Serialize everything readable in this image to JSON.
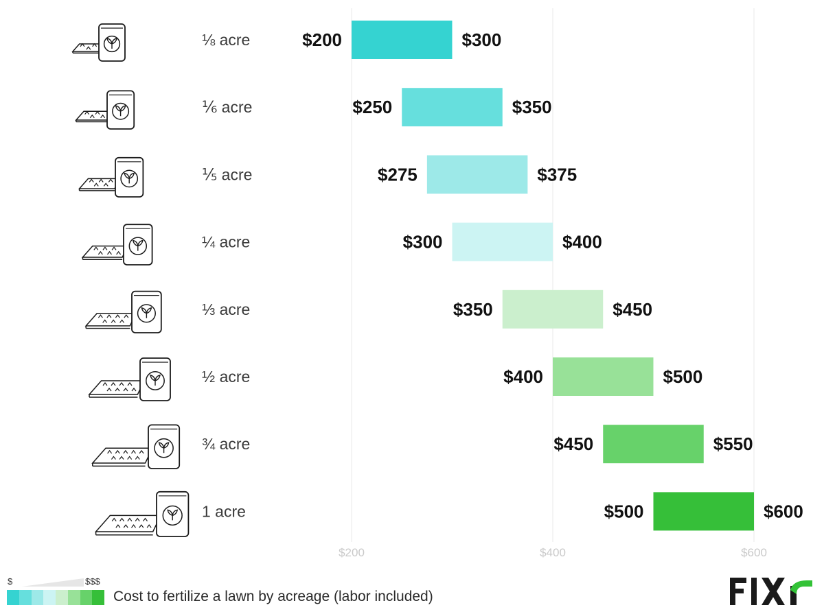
{
  "chart_data": {
    "type": "bar",
    "subtype": "floating-range-horizontal",
    "title": "Cost to fertilize a lawn by acreage (labor included)",
    "xlabel": "",
    "ylabel": "",
    "xlim": [
      100,
      640
    ],
    "xticks": [
      200,
      400,
      600
    ],
    "xtick_labels": [
      "$200",
      "$400",
      "$600"
    ],
    "grid": true,
    "categories": [
      "⅛ acre",
      "⅙ acre",
      "⅕ acre",
      "¼ acre",
      "⅓ acre",
      "½ acre",
      "¾ acre",
      "1 acre"
    ],
    "low": [
      200,
      250,
      275,
      300,
      350,
      400,
      450,
      500
    ],
    "high": [
      300,
      350,
      375,
      400,
      450,
      500,
      550,
      600
    ],
    "low_labels": [
      "$200",
      "$250",
      "$275",
      "$300",
      "$350",
      "$400",
      "$450",
      "$500"
    ],
    "high_labels": [
      "$300",
      "$350",
      "$375",
      "$400",
      "$450",
      "$500",
      "$550",
      "$600"
    ],
    "colors": [
      "#35d3d1",
      "#66dfdd",
      "#9de9e8",
      "#ccf4f3",
      "#cbefcd",
      "#98e198",
      "#67d26a",
      "#36bf39"
    ]
  },
  "legend": {
    "scale_low": "$",
    "scale_high": "$$$",
    "caption": "Cost to fertilize a lawn by acreage (labor included)"
  },
  "brand": {
    "name": "FIXR",
    "color": "#1a1a1a",
    "accent": "#33c237"
  },
  "icons": [
    "lawn-fertilizer-bag-icon"
  ]
}
